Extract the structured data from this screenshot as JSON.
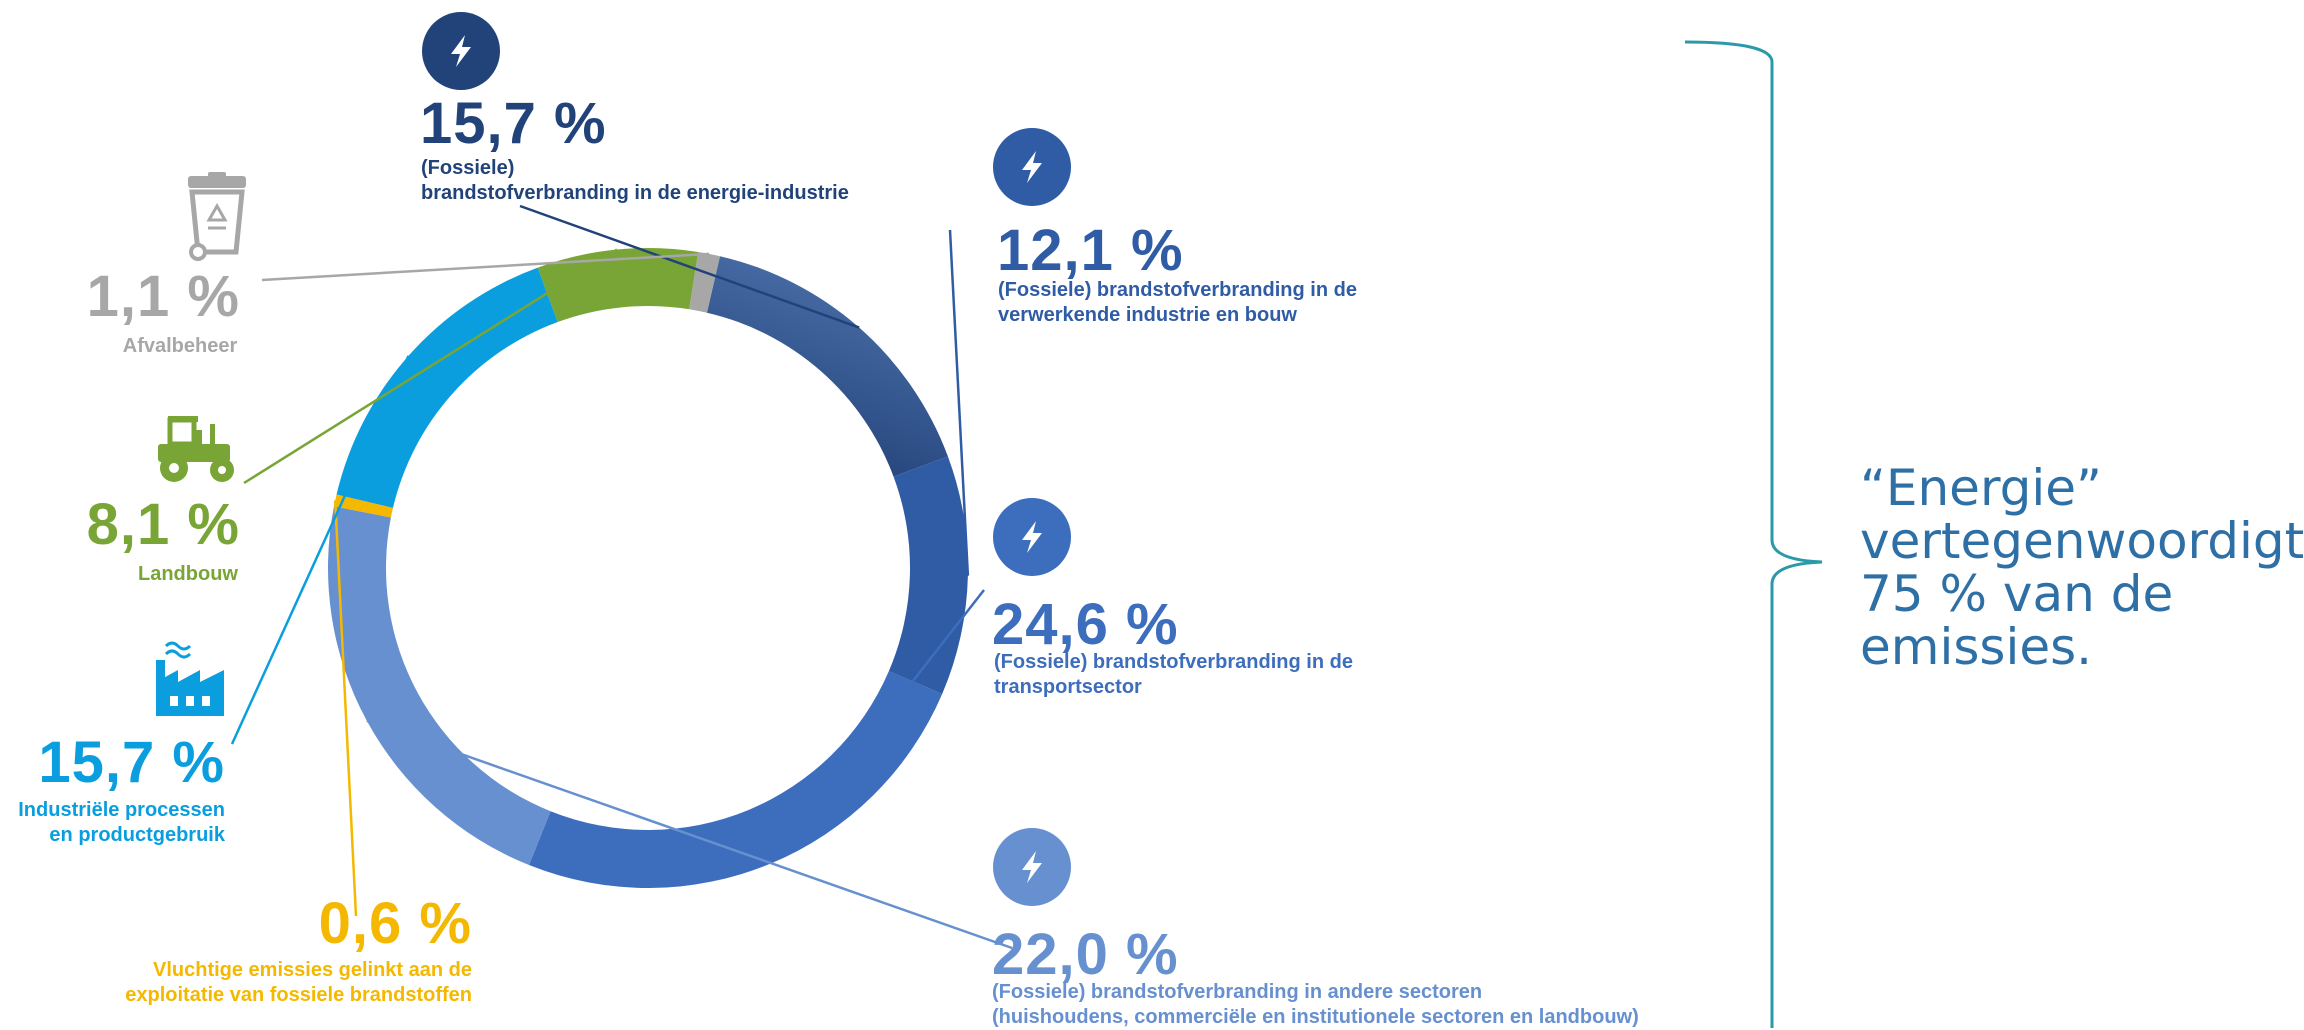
{
  "chart_data": {
    "type": "donut",
    "unit": "%",
    "segments": [
      {
        "value": 15.7,
        "value_label": "15,7 %",
        "label": "(Fossiele)\nbrandstofverbranding in de energie-industrie",
        "color": "#21437a",
        "icon": "lightning-icon"
      },
      {
        "value": 12.1,
        "value_label": "12,1 %",
        "label": "(Fossiele) brandstofverbranding in de\nverwerkende industrie en bouw",
        "color": "#2f5ca5",
        "icon": "lightning-icon"
      },
      {
        "value": 24.6,
        "value_label": "24,6 %",
        "label": "(Fossiele) brandstofverbranding in de\ntransportsector",
        "color": "#3d6dbd",
        "icon": "lightning-icon"
      },
      {
        "value": 22.0,
        "value_label": "22,0 %",
        "label": "(Fossiele) brandstofverbranding  in andere sectoren\n(huishoudens, commerciële en institutionele sectoren en landbouw)",
        "color": "#6690cf",
        "icon": "lightning-icon"
      },
      {
        "value": 0.6,
        "value_label": "0,6 %",
        "label": "Vluchtige emissies gelinkt aan de\nexploitatie van fossiele brandstoffen",
        "color": "#f5b800",
        "icon": ""
      },
      {
        "value": 15.7,
        "value_label": "15,7 %",
        "label": "Industriële processen\nen productgebruik",
        "color": "#0a9ede",
        "icon": "factory-icon"
      },
      {
        "value": 8.1,
        "value_label": "8,1 %",
        "label": "Landbouw",
        "color": "#78a535",
        "icon": "tractor-icon"
      },
      {
        "value": 1.1,
        "value_label": "1,1 %",
        "label": "Afvalbeheer",
        "color": "#a7a7a7",
        "icon": "recycle-bin-icon"
      }
    ],
    "bracket": {
      "covers": [
        "15,7 %",
        "12,1 %",
        "24,6 %",
        "22,0 %"
      ],
      "text": "“Energie” vertegenwoordigt 75 % van de emissies."
    }
  }
}
